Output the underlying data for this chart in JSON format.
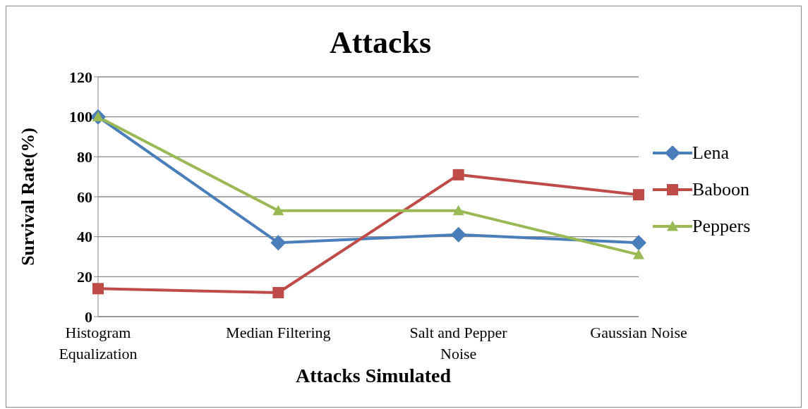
{
  "chart_data": {
    "type": "line",
    "title": "Attacks",
    "xlabel": "Attacks Simulated",
    "ylabel": "Survival Rate(%)",
    "categories": [
      "Histogram Equalization",
      "Median Filtering",
      "Salt and Pepper Noise",
      "Gaussian Noise"
    ],
    "series": [
      {
        "name": "Lena",
        "color": "#4a7ebb",
        "marker": "diamond",
        "values": [
          100,
          37,
          41,
          37
        ]
      },
      {
        "name": "Baboon",
        "color": "#be4b48",
        "marker": "square",
        "values": [
          14,
          12,
          71,
          61
        ]
      },
      {
        "name": "Peppers",
        "color": "#98b954",
        "marker": "triangle",
        "values": [
          100,
          53,
          53,
          31
        ]
      }
    ],
    "ylim": [
      0,
      120
    ],
    "yticks": [
      0,
      20,
      40,
      60,
      80,
      100,
      120
    ],
    "grid": "y",
    "legend": "right",
    "line_style": "solid"
  }
}
